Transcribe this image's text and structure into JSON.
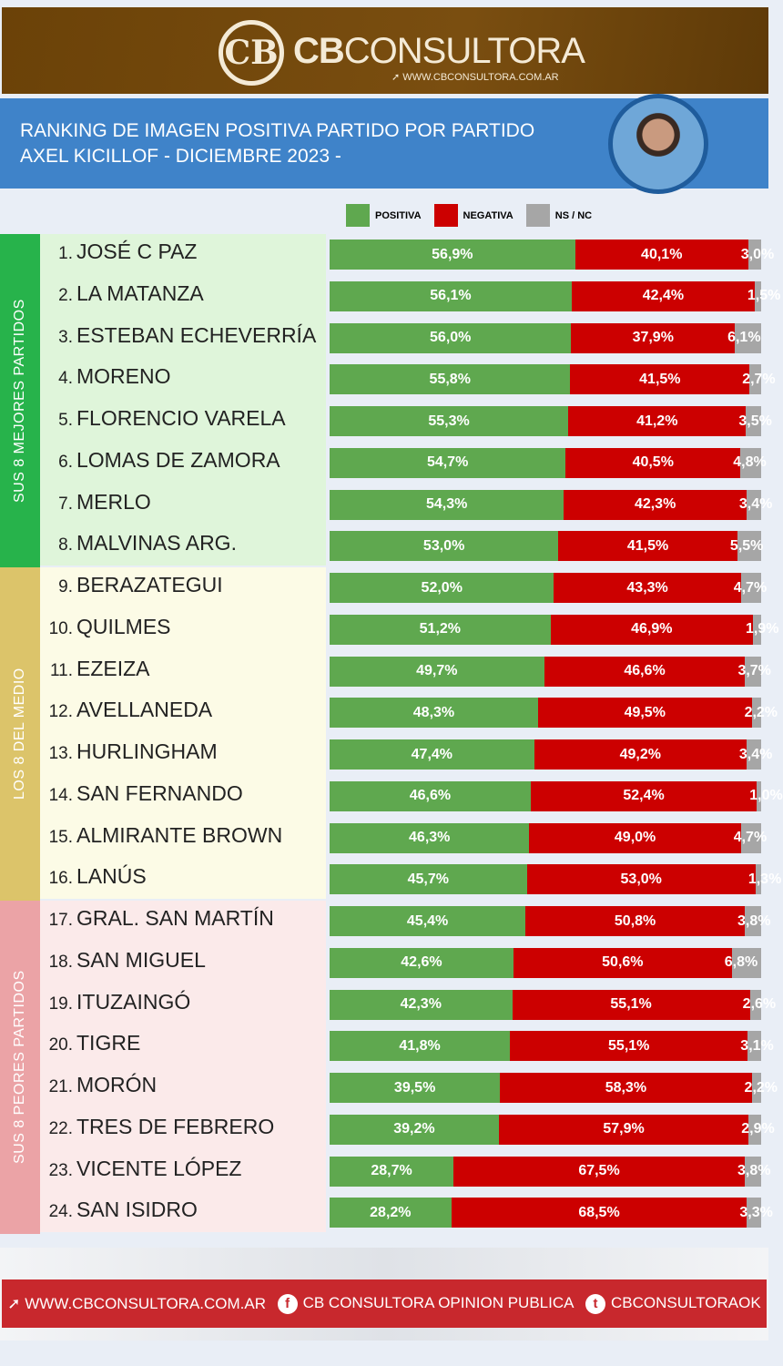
{
  "header": {
    "brand_bold": "CB",
    "brand_light": "CONSULTORA",
    "website": "WWW.CBCONSULTORA.COM.AR",
    "logo_letters": "CB"
  },
  "title": {
    "line1": "RANKING DE IMAGEN POSITIVA PARTIDO POR PARTIDO",
    "line2": "AXEL KICILLOF - DICIEMBRE 2023 -"
  },
  "footer": {
    "website": "WWW.CBCONSULTORA.COM.AR",
    "facebook": "CB CONSULTORA OPINION PUBLICA",
    "twitter": "CBCONSULTORAOK"
  },
  "chart_data": {
    "type": "bar",
    "stacked": true,
    "orientation": "horizontal",
    "legend": [
      "POSITIVA",
      "NEGATIVA",
      "NS / NC"
    ],
    "colors": {
      "positiva": "#5fa84f",
      "negativa": "#cc0000",
      "nsnc": "#a6a6a6"
    },
    "groups": [
      {
        "label": "SUS 8 MEJORES PARTIDOS",
        "color": "#27b34b",
        "bg": "#dff5da",
        "from": 1,
        "to": 8
      },
      {
        "label": "LOS 8 DEL MEDIO",
        "color": "#dcc46a",
        "bg": "#fcfbe6",
        "from": 9,
        "to": 16
      },
      {
        "label": "SUS 8 PEORES PARTIDOS",
        "color": "#eba3a6",
        "bg": "#fbeaea",
        "from": 17,
        "to": 24
      }
    ],
    "rows": [
      {
        "rank": "1.",
        "name": "JOSÉ C PAZ",
        "positiva": 56.9,
        "negativa": 40.1,
        "nsnc": 3.0
      },
      {
        "rank": "2.",
        "name": "LA MATANZA",
        "positiva": 56.1,
        "negativa": 42.4,
        "nsnc": 1.5
      },
      {
        "rank": "3.",
        "name": "ESTEBAN ECHEVERRÍA",
        "positiva": 56.0,
        "negativa": 37.9,
        "nsnc": 6.1
      },
      {
        "rank": "4.",
        "name": "MORENO",
        "positiva": 55.8,
        "negativa": 41.5,
        "nsnc": 2.7
      },
      {
        "rank": "5.",
        "name": "FLORENCIO VARELA",
        "positiva": 55.3,
        "negativa": 41.2,
        "nsnc": 3.5
      },
      {
        "rank": "6.",
        "name": "LOMAS DE ZAMORA",
        "positiva": 54.7,
        "negativa": 40.5,
        "nsnc": 4.8
      },
      {
        "rank": "7.",
        "name": "MERLO",
        "positiva": 54.3,
        "negativa": 42.3,
        "nsnc": 3.4
      },
      {
        "rank": "8.",
        "name": "MALVINAS ARG.",
        "positiva": 53.0,
        "negativa": 41.5,
        "nsnc": 5.5
      },
      {
        "rank": "9.",
        "name": "BERAZATEGUI",
        "positiva": 52.0,
        "negativa": 43.3,
        "nsnc": 4.7
      },
      {
        "rank": "10.",
        "name": "QUILMES",
        "positiva": 51.2,
        "negativa": 46.9,
        "nsnc": 1.9
      },
      {
        "rank": "11.",
        "name": "EZEIZA",
        "positiva": 49.7,
        "negativa": 46.6,
        "nsnc": 3.7
      },
      {
        "rank": "12.",
        "name": "AVELLANEDA",
        "positiva": 48.3,
        "negativa": 49.5,
        "nsnc": 2.2
      },
      {
        "rank": "13.",
        "name": "HURLINGHAM",
        "positiva": 47.4,
        "negativa": 49.2,
        "nsnc": 3.4
      },
      {
        "rank": "14.",
        "name": "SAN FERNANDO",
        "positiva": 46.6,
        "negativa": 52.4,
        "nsnc": 1.0
      },
      {
        "rank": "15.",
        "name": "ALMIRANTE BROWN",
        "positiva": 46.3,
        "negativa": 49.0,
        "nsnc": 4.7
      },
      {
        "rank": "16.",
        "name": "LANÚS",
        "positiva": 45.7,
        "negativa": 53.0,
        "nsnc": 1.3
      },
      {
        "rank": "17.",
        "name": "GRAL. SAN MARTÍN",
        "positiva": 45.4,
        "negativa": 50.8,
        "nsnc": 3.8
      },
      {
        "rank": "18.",
        "name": "SAN MIGUEL",
        "positiva": 42.6,
        "negativa": 50.6,
        "nsnc": 6.8
      },
      {
        "rank": "19.",
        "name": "ITUZAINGÓ",
        "positiva": 42.3,
        "negativa": 55.1,
        "nsnc": 2.6
      },
      {
        "rank": "20.",
        "name": "TIGRE",
        "positiva": 41.8,
        "negativa": 55.1,
        "nsnc": 3.1
      },
      {
        "rank": "21.",
        "name": "MORÓN",
        "positiva": 39.5,
        "negativa": 58.3,
        "nsnc": 2.2
      },
      {
        "rank": "22.",
        "name": "TRES DE FEBRERO",
        "positiva": 39.2,
        "negativa": 57.9,
        "nsnc": 2.9
      },
      {
        "rank": "23.",
        "name": "VICENTE LÓPEZ",
        "positiva": 28.7,
        "negativa": 67.5,
        "nsnc": 3.8
      },
      {
        "rank": "24.",
        "name": "SAN ISIDRO",
        "positiva": 28.2,
        "negativa": 68.5,
        "nsnc": 3.3
      }
    ]
  }
}
